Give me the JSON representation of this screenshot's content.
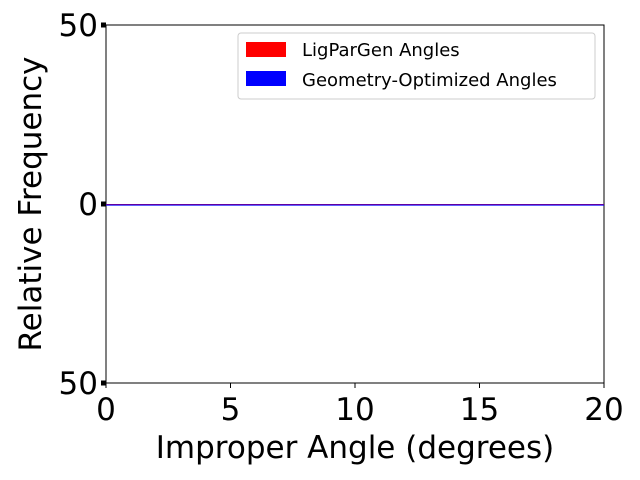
{
  "chart_data": {
    "type": "bar",
    "title": "",
    "xlabel": "Improper Angle (degrees)",
    "ylabel": "Relative Frequency",
    "xlim": [
      0,
      20
    ],
    "ylim": [
      -50,
      50
    ],
    "xticks": [
      0,
      5,
      10,
      15,
      20
    ],
    "yticks": [
      -50,
      0,
      50
    ],
    "xtick_labels": [
      "0",
      "5",
      "10",
      "15",
      "20"
    ],
    "ytick_labels": [
      "50",
      "0",
      "50"
    ],
    "legend_position": "top-right",
    "grid": false,
    "series": [
      {
        "name": "LigParGen Angles",
        "color": "#ff0000",
        "direction": "up",
        "values": []
      },
      {
        "name": "Geometry-Optimized Angles",
        "color": "#0000ff",
        "direction": "down",
        "values": []
      }
    ],
    "baseline": 0
  }
}
